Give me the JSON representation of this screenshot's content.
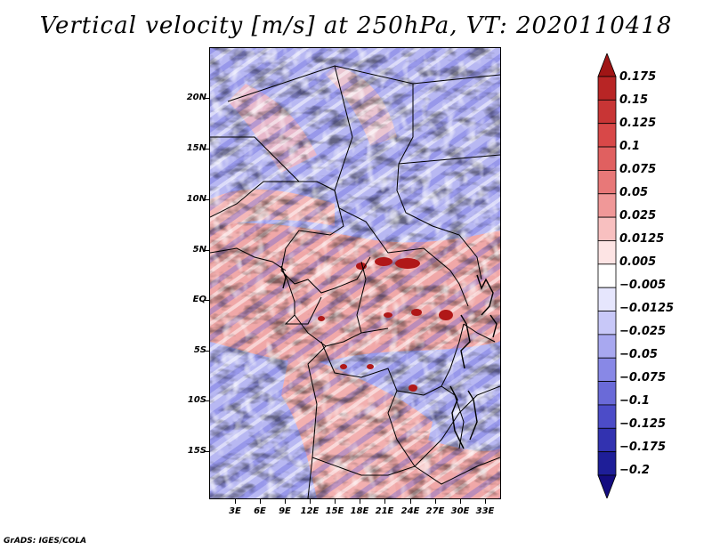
{
  "title": "Vertical velocity [m/s] at 250hPa, VT: 2020110418",
  "map": {
    "lat_labels": [
      "20N",
      "15N",
      "10N",
      "5N",
      "EQ",
      "5S",
      "10S",
      "15S"
    ],
    "lon_labels": [
      "3E",
      "6E",
      "9E",
      "12E",
      "15E",
      "18E",
      "21E",
      "24E",
      "27E",
      "30E",
      "33E"
    ]
  },
  "colorbar": {
    "labels": [
      "0.175",
      "0.15",
      "0.125",
      "0.1",
      "0.075",
      "0.05",
      "0.025",
      "0.0125",
      "0.005",
      "−0.005",
      "−0.0125",
      "−0.025",
      "−0.05",
      "−0.075",
      "−0.1",
      "−0.125",
      "−0.175",
      "−0.2"
    ],
    "colors": [
      "#a01515",
      "#b82525",
      "#c83535",
      "#d84848",
      "#e06060",
      "#e87878",
      "#f09898",
      "#f8c0c0",
      "#fde4e4",
      "#ffffff",
      "#e6e6fd",
      "#c8c8f8",
      "#a8a8f0",
      "#8888e6",
      "#6a6ad8",
      "#4c4cc8",
      "#3232b0",
      "#1e1e98",
      "#140c80"
    ]
  },
  "footer": "GrADS: IGES/COLA"
}
